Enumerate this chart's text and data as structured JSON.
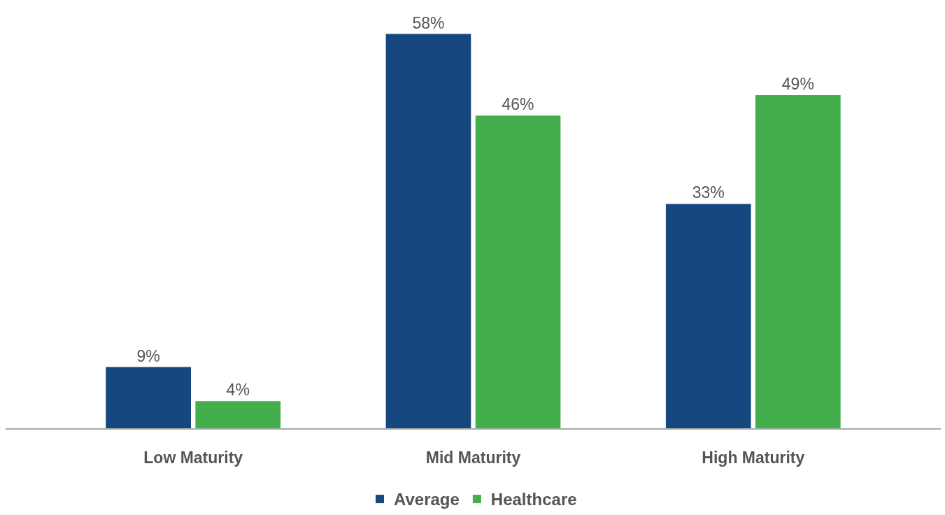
{
  "chart_data": {
    "type": "bar",
    "categories": [
      "Low Maturity",
      "Mid Maturity",
      "High Maturity"
    ],
    "series": [
      {
        "name": "Average",
        "color": "#16487f",
        "values": [
          9,
          58,
          33
        ],
        "value_labels": [
          "9%",
          "58%",
          "33%"
        ]
      },
      {
        "name": "Healthcare",
        "color": "#42af4c",
        "values": [
          4,
          46,
          49
        ],
        "value_labels": [
          "4%",
          "46%",
          "49%"
        ]
      }
    ],
    "grid": false,
    "legend": "bottom",
    "tick_labels": "x"
  }
}
